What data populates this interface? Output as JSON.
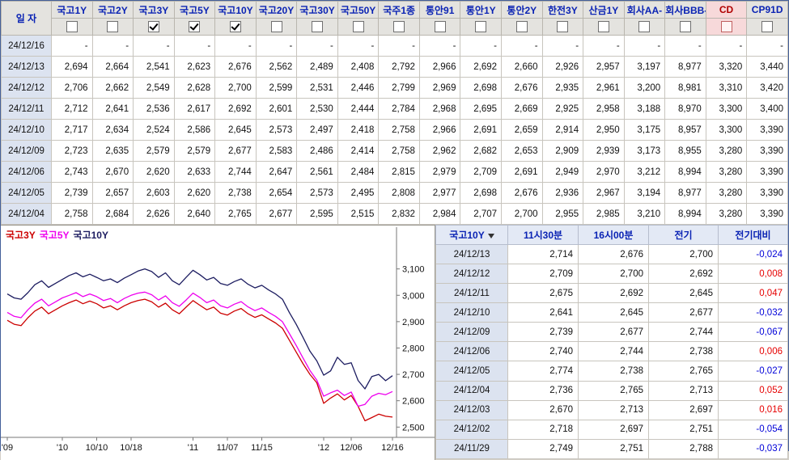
{
  "colors": {
    "positive": "#e60000",
    "negative": "#0000d8",
    "header_text": "#0a23b4",
    "accent_bg": "#f7d9da",
    "date_cell_bg": "#dce3f0"
  },
  "top_table": {
    "date_header": "일 자",
    "columns": [
      {
        "label": "국고1Y",
        "checked": false
      },
      {
        "label": "국고2Y",
        "checked": false
      },
      {
        "label": "국고3Y",
        "checked": true
      },
      {
        "label": "국고5Y",
        "checked": true
      },
      {
        "label": "국고10Y",
        "checked": true
      },
      {
        "label": "국고20Y",
        "checked": false
      },
      {
        "label": "국고30Y",
        "checked": false
      },
      {
        "label": "국고50Y",
        "checked": false
      },
      {
        "label": "국주1종",
        "checked": false
      },
      {
        "label": "통안91",
        "checked": false
      },
      {
        "label": "통안1Y",
        "checked": false
      },
      {
        "label": "통안2Y",
        "checked": false
      },
      {
        "label": "한전3Y",
        "checked": false
      },
      {
        "label": "산금1Y",
        "checked": false
      },
      {
        "label": "회사AA-",
        "checked": false
      },
      {
        "label": "회사BBB-",
        "checked": false
      },
      {
        "label": "CD",
        "checked": false,
        "accent": true
      },
      {
        "label": "CP91D",
        "checked": false
      }
    ],
    "rows": [
      {
        "date": "24/12/16",
        "values": [
          "-",
          "-",
          "-",
          "-",
          "-",
          "-",
          "-",
          "-",
          "-",
          "-",
          "-",
          "-",
          "-",
          "-",
          "-",
          "-",
          "-",
          "-"
        ]
      },
      {
        "date": "24/12/13",
        "values": [
          "2,694",
          "2,664",
          "2,541",
          "2,623",
          "2,676",
          "2,562",
          "2,489",
          "2,408",
          "2,792",
          "2,966",
          "2,692",
          "2,660",
          "2,926",
          "2,957",
          "3,197",
          "8,977",
          "3,320",
          "3,440"
        ]
      },
      {
        "date": "24/12/12",
        "values": [
          "2,706",
          "2,662",
          "2,549",
          "2,628",
          "2,700",
          "2,599",
          "2,531",
          "2,446",
          "2,799",
          "2,969",
          "2,698",
          "2,676",
          "2,935",
          "2,961",
          "3,200",
          "8,981",
          "3,310",
          "3,420"
        ]
      },
      {
        "date": "24/12/11",
        "values": [
          "2,712",
          "2,641",
          "2,536",
          "2,617",
          "2,692",
          "2,601",
          "2,530",
          "2,444",
          "2,784",
          "2,968",
          "2,695",
          "2,669",
          "2,925",
          "2,958",
          "3,188",
          "8,970",
          "3,300",
          "3,400"
        ]
      },
      {
        "date": "24/12/10",
        "values": [
          "2,717",
          "2,634",
          "2,524",
          "2,586",
          "2,645",
          "2,573",
          "2,497",
          "2,418",
          "2,758",
          "2,966",
          "2,691",
          "2,659",
          "2,914",
          "2,950",
          "3,175",
          "8,957",
          "3,300",
          "3,390"
        ]
      },
      {
        "date": "24/12/09",
        "values": [
          "2,723",
          "2,635",
          "2,579",
          "2,579",
          "2,677",
          "2,583",
          "2,486",
          "2,414",
          "2,758",
          "2,962",
          "2,682",
          "2,653",
          "2,909",
          "2,939",
          "3,173",
          "8,955",
          "3,280",
          "3,390"
        ]
      },
      {
        "date": "24/12/06",
        "values": [
          "2,743",
          "2,670",
          "2,620",
          "2,633",
          "2,744",
          "2,647",
          "2,561",
          "2,484",
          "2,815",
          "2,979",
          "2,709",
          "2,691",
          "2,949",
          "2,970",
          "3,212",
          "8,994",
          "3,280",
          "3,390"
        ]
      },
      {
        "date": "24/12/05",
        "values": [
          "2,739",
          "2,657",
          "2,603",
          "2,620",
          "2,738",
          "2,654",
          "2,573",
          "2,495",
          "2,808",
          "2,977",
          "2,698",
          "2,676",
          "2,936",
          "2,967",
          "3,194",
          "8,977",
          "3,280",
          "3,390"
        ]
      },
      {
        "date": "24/12/04",
        "values": [
          "2,758",
          "2,684",
          "2,626",
          "2,640",
          "2,765",
          "2,677",
          "2,595",
          "2,515",
          "2,832",
          "2,984",
          "2,707",
          "2,700",
          "2,955",
          "2,985",
          "3,210",
          "8,994",
          "3,280",
          "3,390"
        ]
      }
    ]
  },
  "chart_data": {
    "type": "line",
    "ylim": [
      2.461,
      3.24
    ],
    "grid": false,
    "legend_position": "top-left",
    "y_ticks": [
      {
        "v": 3.1,
        "label": "3,100"
      },
      {
        "v": 3.0,
        "label": "3,000"
      },
      {
        "v": 2.9,
        "label": "2,900"
      },
      {
        "v": 2.8,
        "label": "2,800"
      },
      {
        "v": 2.7,
        "label": "2,700"
      },
      {
        "v": 2.6,
        "label": "2,600"
      },
      {
        "v": 2.5,
        "label": "2,500"
      }
    ],
    "x_ticks": [
      {
        "i": 0,
        "label": "'09"
      },
      {
        "i": 8,
        "label": "'10"
      },
      {
        "i": 13,
        "label": "10/10"
      },
      {
        "i": 18,
        "label": "10/18"
      },
      {
        "i": 27,
        "label": "'11"
      },
      {
        "i": 32,
        "label": "11/07"
      },
      {
        "i": 37,
        "label": "11/15"
      },
      {
        "i": 46,
        "label": "'12"
      },
      {
        "i": 50,
        "label": "12/06"
      },
      {
        "i": 56,
        "label": "12/16"
      }
    ],
    "series": [
      {
        "name": "국고3Y",
        "key": "ktb-3y",
        "color": "#cc0000",
        "values": [
          2.905,
          2.89,
          2.885,
          2.915,
          2.94,
          2.955,
          2.93,
          2.945,
          2.96,
          2.972,
          2.982,
          2.968,
          2.978,
          2.968,
          2.952,
          2.96,
          2.945,
          2.96,
          2.972,
          2.98,
          2.985,
          2.975,
          2.955,
          2.97,
          2.945,
          2.93,
          2.955,
          2.98,
          2.962,
          2.945,
          2.955,
          2.932,
          2.925,
          2.94,
          2.95,
          2.93,
          2.916,
          2.926,
          2.91,
          2.895,
          2.875,
          2.83,
          2.785,
          2.74,
          2.7,
          2.668,
          2.59,
          2.61,
          2.626,
          2.603,
          2.62,
          2.579,
          2.524,
          2.536,
          2.549,
          2.541,
          2.538
        ]
      },
      {
        "name": "국고5Y",
        "key": "ktb-5y",
        "color": "#ee00ee",
        "values": [
          2.935,
          2.92,
          2.915,
          2.945,
          2.97,
          2.985,
          2.96,
          2.975,
          2.99,
          3.0,
          3.01,
          2.995,
          3.005,
          2.995,
          2.98,
          2.988,
          2.972,
          2.988,
          3.0,
          3.008,
          3.012,
          3.002,
          2.982,
          2.998,
          2.972,
          2.958,
          2.982,
          3.008,
          2.992,
          2.972,
          2.982,
          2.96,
          2.952,
          2.966,
          2.976,
          2.956,
          2.942,
          2.952,
          2.935,
          2.92,
          2.9,
          2.855,
          2.81,
          2.762,
          2.715,
          2.678,
          2.617,
          2.63,
          2.64,
          2.62,
          2.633,
          2.579,
          2.586,
          2.617,
          2.628,
          2.623,
          2.635
        ]
      },
      {
        "name": "국고10Y",
        "key": "ktb-10y",
        "color": "#1c1c60",
        "values": [
          3.005,
          2.99,
          2.985,
          3.01,
          3.04,
          3.055,
          3.03,
          3.045,
          3.06,
          3.075,
          3.085,
          3.07,
          3.08,
          3.068,
          3.055,
          3.062,
          3.048,
          3.065,
          3.078,
          3.092,
          3.1,
          3.09,
          3.068,
          3.085,
          3.055,
          3.04,
          3.068,
          3.095,
          3.078,
          3.058,
          3.068,
          3.045,
          3.038,
          3.052,
          3.062,
          3.042,
          3.028,
          3.038,
          3.02,
          3.005,
          2.985,
          2.935,
          2.89,
          2.84,
          2.788,
          2.751,
          2.697,
          2.713,
          2.765,
          2.738,
          2.744,
          2.677,
          2.645,
          2.692,
          2.7,
          2.676,
          2.695
        ]
      }
    ]
  },
  "bottom_table": {
    "headers": [
      "국고10Y",
      "11시30분",
      "16시00분",
      "전기",
      "전기대비"
    ],
    "rows": [
      {
        "date": "24/12/13",
        "t1130": "2,714",
        "t1600": "2,676",
        "prev": "2,700",
        "change": "-0,024"
      },
      {
        "date": "24/12/12",
        "t1130": "2,709",
        "t1600": "2,700",
        "prev": "2,692",
        "change": "0,008"
      },
      {
        "date": "24/12/11",
        "t1130": "2,675",
        "t1600": "2,692",
        "prev": "2,645",
        "change": "0,047"
      },
      {
        "date": "24/12/10",
        "t1130": "2,641",
        "t1600": "2,645",
        "prev": "2,677",
        "change": "-0,032"
      },
      {
        "date": "24/12/09",
        "t1130": "2,739",
        "t1600": "2,677",
        "prev": "2,744",
        "change": "-0,067"
      },
      {
        "date": "24/12/06",
        "t1130": "2,740",
        "t1600": "2,744",
        "prev": "2,738",
        "change": "0,006"
      },
      {
        "date": "24/12/05",
        "t1130": "2,774",
        "t1600": "2,738",
        "prev": "2,765",
        "change": "-0,027"
      },
      {
        "date": "24/12/04",
        "t1130": "2,736",
        "t1600": "2,765",
        "prev": "2,713",
        "change": "0,052"
      },
      {
        "date": "24/12/03",
        "t1130": "2,670",
        "t1600": "2,713",
        "prev": "2,697",
        "change": "0,016"
      },
      {
        "date": "24/12/02",
        "t1130": "2,718",
        "t1600": "2,697",
        "prev": "2,751",
        "change": "-0,054"
      },
      {
        "date": "24/11/29",
        "t1130": "2,749",
        "t1600": "2,751",
        "prev": "2,788",
        "change": "-0,037"
      }
    ]
  }
}
